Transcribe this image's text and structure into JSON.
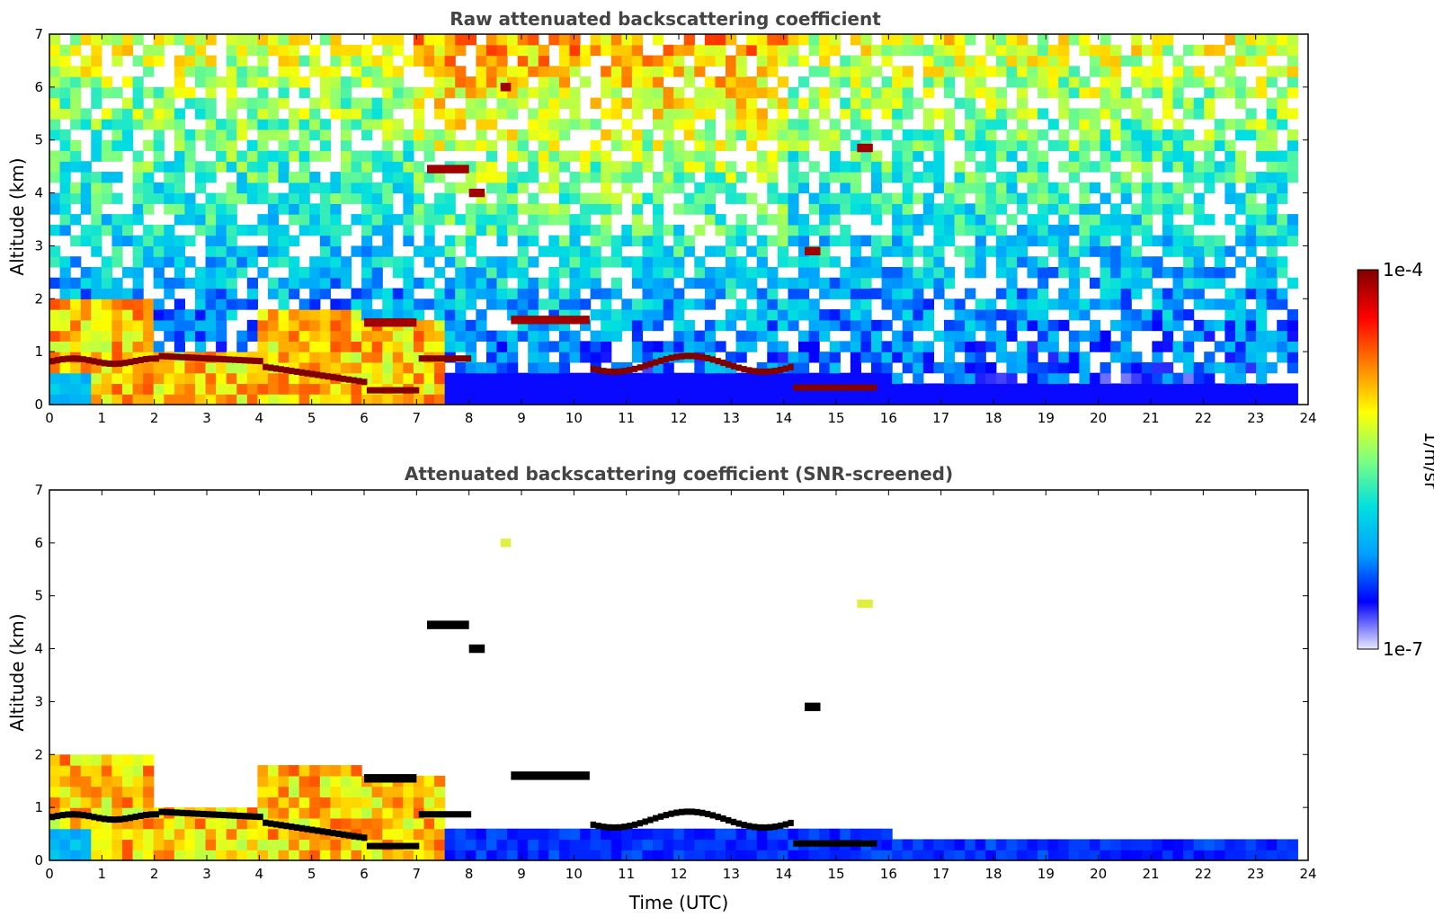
{
  "chart_data": [
    {
      "type": "heatmap",
      "title": "Raw attenuated backscattering coefficient",
      "xlabel": "",
      "ylabel": "Altitude (km)",
      "xlim": [
        0,
        24
      ],
      "ylim": [
        0,
        7
      ],
      "xticks": [
        0,
        1,
        2,
        3,
        4,
        5,
        6,
        7,
        8,
        9,
        10,
        11,
        12,
        13,
        14,
        15,
        16,
        17,
        18,
        19,
        20,
        21,
        22,
        23,
        24
      ],
      "yticks": [
        0,
        1,
        2,
        3,
        4,
        5,
        6,
        7
      ],
      "data_end_time": 23.8,
      "screened": false,
      "features": [
        {
          "kind": "boundary_layer",
          "t0": 0,
          "t1": 7.5,
          "top_km": 2.1
        },
        {
          "kind": "cloud_layer",
          "t0": 2.0,
          "t1": 4.0,
          "alt_km": 0.9
        },
        {
          "kind": "cloud_layer",
          "t0": 6.0,
          "t1": 7.0,
          "alt_km": 1.55
        },
        {
          "kind": "cloud_layer",
          "t0": 7.2,
          "t1": 8.0,
          "alt_km": 4.45
        },
        {
          "kind": "cloud_layer",
          "t0": 8.0,
          "t1": 8.3,
          "alt_km": 4.0
        },
        {
          "kind": "cloud_layer",
          "t0": 8.6,
          "t1": 8.8,
          "alt_km": 6.0
        },
        {
          "kind": "cloud_layer",
          "t0": 8.8,
          "t1": 10.3,
          "alt_km": 1.6
        },
        {
          "kind": "cloud_layer",
          "t0": 10.3,
          "t1": 14.1,
          "alt_km": 0.75
        },
        {
          "kind": "cloud_layer",
          "t0": 14.4,
          "t1": 14.7,
          "alt_km": 2.9
        },
        {
          "kind": "cloud_layer",
          "t0": 15.4,
          "t1": 15.7,
          "alt_km": 4.85
        }
      ]
    },
    {
      "type": "heatmap",
      "title": "Attenuated backscattering coefficient (SNR-screened)",
      "xlabel": "Time (UTC)",
      "ylabel": "Altitude (km)",
      "xlim": [
        0,
        24
      ],
      "ylim": [
        0,
        7
      ],
      "xticks": [
        0,
        1,
        2,
        3,
        4,
        5,
        6,
        7,
        8,
        9,
        10,
        11,
        12,
        13,
        14,
        15,
        16,
        17,
        18,
        19,
        20,
        21,
        22,
        23,
        24
      ],
      "yticks": [
        0,
        1,
        2,
        3,
        4,
        5,
        6,
        7
      ],
      "data_end_time": 23.8,
      "screened": true
    }
  ],
  "colorbar": {
    "label": "1/m/sr",
    "max_label": "1e-4",
    "min_label": "1e-7",
    "colormap": "jet",
    "colors": [
      "#e8e8ff",
      "#0000ff",
      "#00a0ff",
      "#00e0e0",
      "#80ff80",
      "#ffff00",
      "#ff8000",
      "#ff0000",
      "#800000"
    ]
  }
}
